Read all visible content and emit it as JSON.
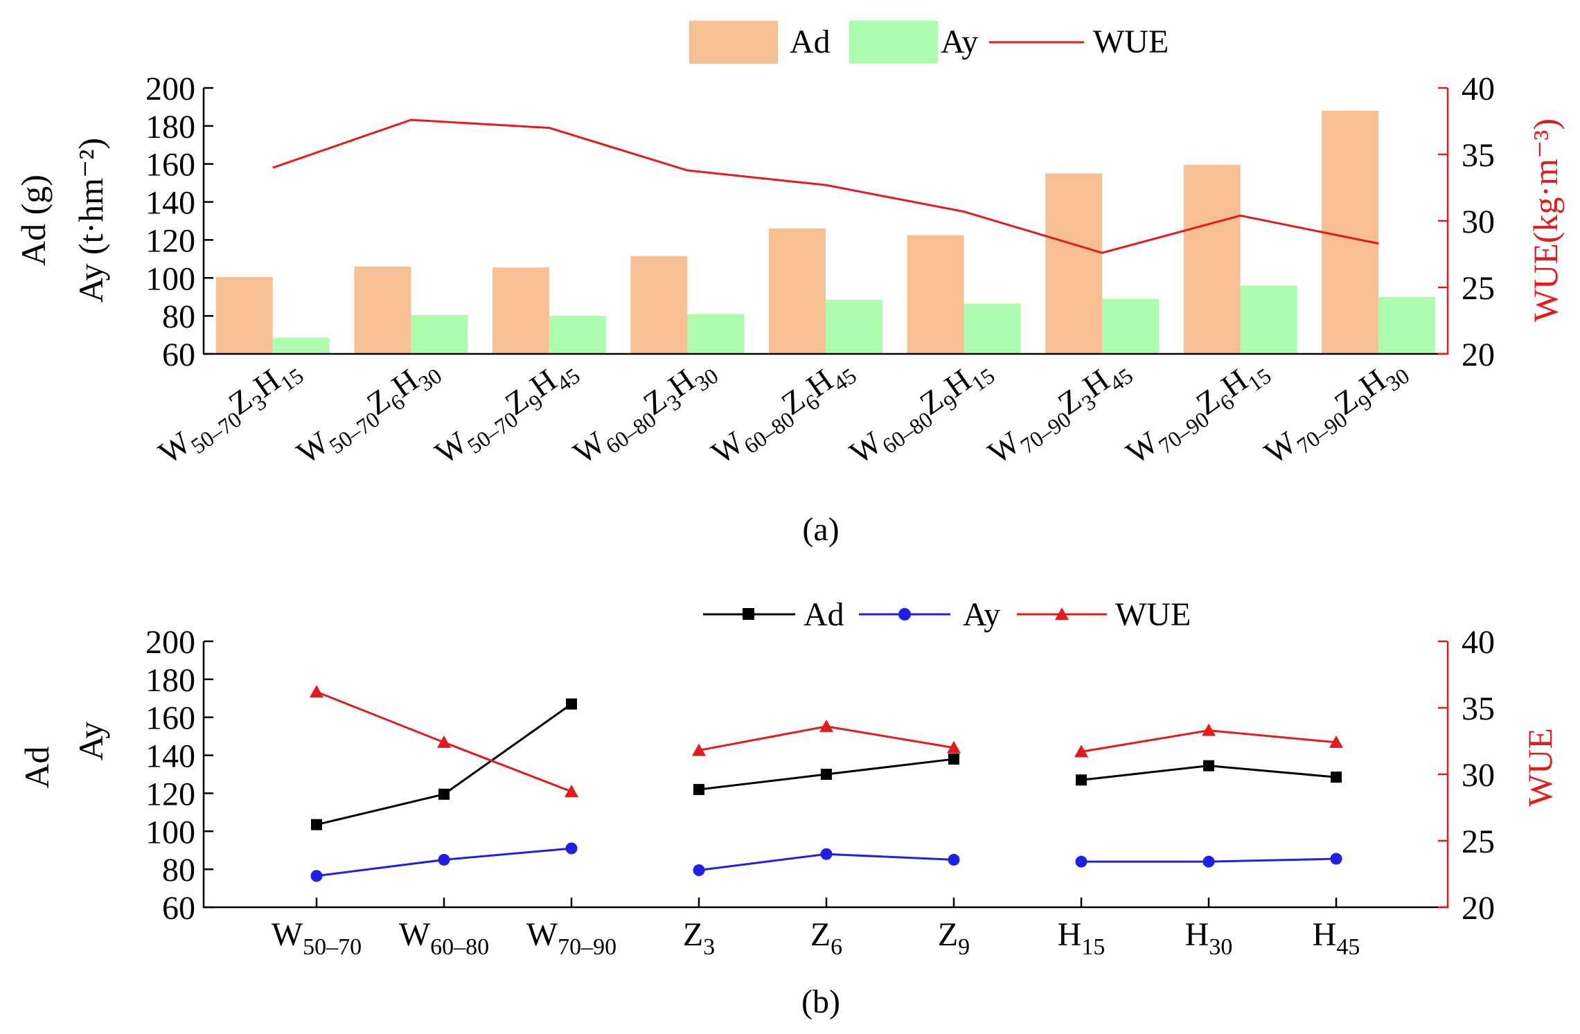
{
  "colors": {
    "ad_bar": "#f7bf94",
    "ay_bar": "#aefcad",
    "wue": "#e41a1c",
    "ad_line": "#000000",
    "ay_line": "#1f1fe6",
    "axis": "#000000"
  },
  "chart_data": [
    {
      "id": "a",
      "type": "bar",
      "caption": "(a)",
      "legend": {
        "ad": "Ad",
        "ay": "Ay",
        "wue": "WUE"
      },
      "ylabel_left": [
        "Ad (g)",
        "Ay (t·hm⁻²)"
      ],
      "ylabel_right": "WUE(kg·m⁻³)",
      "ylim_left": [
        60,
        200
      ],
      "yticks_left": [
        60,
        80,
        100,
        120,
        140,
        160,
        180,
        200
      ],
      "ylim_right": [
        20,
        40
      ],
      "yticks_right": [
        20,
        25,
        30,
        35,
        40
      ],
      "categories": [
        {
          "w": "W",
          "ws": "50–70",
          "z": "Z",
          "zs": "3",
          "h": "H",
          "hs": "15"
        },
        {
          "w": "W",
          "ws": "50–70",
          "z": "Z",
          "zs": "6",
          "h": "H",
          "hs": "30"
        },
        {
          "w": "W",
          "ws": "50–70",
          "z": "Z",
          "zs": "9",
          "h": "H",
          "hs": "45"
        },
        {
          "w": "W",
          "ws": "60–80",
          "z": "Z",
          "zs": "3",
          "h": "H",
          "hs": "30"
        },
        {
          "w": "W",
          "ws": "60–80",
          "z": "Z",
          "zs": "6",
          "h": "H",
          "hs": "45"
        },
        {
          "w": "W",
          "ws": "60–80",
          "z": "Z",
          "zs": "9",
          "h": "H",
          "hs": "15"
        },
        {
          "w": "W",
          "ws": "70–90",
          "z": "Z",
          "zs": "3",
          "h": "H",
          "hs": "45"
        },
        {
          "w": "W",
          "ws": "70–90",
          "z": "Z",
          "zs": "6",
          "h": "H",
          "hs": "15"
        },
        {
          "w": "W",
          "ws": "70–90",
          "z": "Z",
          "zs": "9",
          "h": "H",
          "hs": "30"
        }
      ],
      "series": [
        {
          "name": "Ad",
          "axis": "left",
          "kind": "bar",
          "values": [
            100.5,
            106,
            105.5,
            111.5,
            126,
            122.5,
            155,
            159.5,
            188
          ]
        },
        {
          "name": "Ay",
          "axis": "left",
          "kind": "bar",
          "values": [
            68.5,
            80.5,
            80,
            81,
            88.5,
            86.5,
            89,
            96,
            90
          ]
        },
        {
          "name": "WUE",
          "axis": "right",
          "kind": "line",
          "values": [
            34,
            37.6,
            37,
            33.8,
            32.7,
            30.7,
            27.6,
            30.4,
            28.3
          ]
        }
      ]
    },
    {
      "id": "b",
      "type": "line",
      "caption": "(b)",
      "legend": {
        "ad": "Ad",
        "ay": "Ay",
        "wue": "WUE"
      },
      "ylabel_left": [
        "Ad",
        "Ay"
      ],
      "ylabel_right": "WUE",
      "ylim_left": [
        60,
        200
      ],
      "yticks_left": [
        60,
        80,
        100,
        120,
        140,
        160,
        180,
        200
      ],
      "ylim_right": [
        20,
        40
      ],
      "yticks_right": [
        20,
        25,
        30,
        35,
        40
      ],
      "categories": [
        {
          "base": "W",
          "sub": "50–70"
        },
        {
          "base": "W",
          "sub": "60–80"
        },
        {
          "base": "W",
          "sub": "70–90"
        },
        {
          "base": "Z",
          "sub": "3"
        },
        {
          "base": "Z",
          "sub": "6"
        },
        {
          "base": "Z",
          "sub": "9"
        },
        {
          "base": "H",
          "sub": "15"
        },
        {
          "base": "H",
          "sub": "30"
        },
        {
          "base": "H",
          "sub": "45"
        }
      ],
      "groups": [
        [
          0,
          1,
          2
        ],
        [
          3,
          4,
          5
        ],
        [
          6,
          7,
          8
        ]
      ],
      "series": [
        {
          "name": "Ad",
          "axis": "left",
          "marker": "square",
          "values": [
            103.5,
            119.5,
            167,
            122,
            130,
            138,
            127,
            134.5,
            128.5
          ]
        },
        {
          "name": "Ay",
          "axis": "left",
          "marker": "circle",
          "values": [
            76.5,
            85,
            91,
            79.5,
            88,
            85,
            84,
            84,
            85.5
          ]
        },
        {
          "name": "WUE",
          "axis": "right",
          "marker": "triangle",
          "values": [
            36.2,
            32.4,
            28.7,
            31.8,
            33.6,
            32,
            31.7,
            33.3,
            32.4
          ]
        }
      ]
    }
  ]
}
